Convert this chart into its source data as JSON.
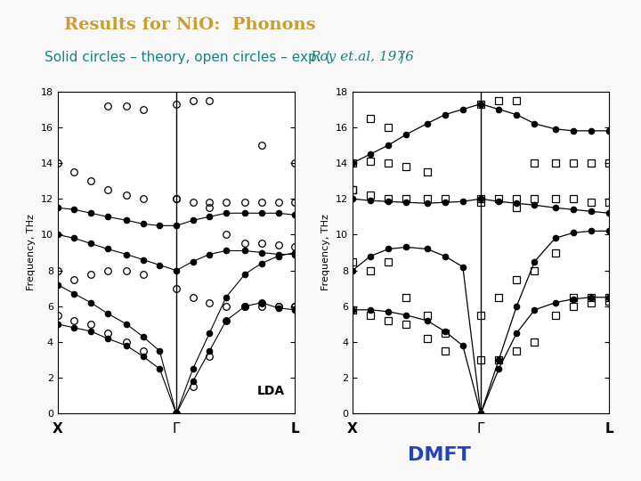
{
  "title": "Results for NiO:  Phonons",
  "title_color": "#C8A030",
  "subtitle_main": "Solid circles – theory, open circles – exp. (",
  "subtitle_italic": "Roy et.al, 1976",
  "subtitle_end": ")",
  "subtitle_color": "#1A8080",
  "dmft_label": "DMFT",
  "dmft_color": "#2244BB",
  "bg_color": "#F8F8F8",
  "ylabel": "Frequency, THz",
  "ylim": [
    0,
    18
  ],
  "yticks": [
    0,
    2,
    4,
    6,
    8,
    10,
    12,
    14,
    16,
    18
  ],
  "lda_solid_branches": [
    {
      "x": [
        0.0,
        0.07,
        0.14,
        0.21,
        0.29,
        0.36,
        0.43,
        0.5,
        0.57,
        0.64,
        0.71,
        0.79,
        0.86,
        0.93,
        1.0
      ],
      "y": [
        11.5,
        11.4,
        11.2,
        11.0,
        10.8,
        10.6,
        10.5,
        10.5,
        10.8,
        11.0,
        11.2,
        11.2,
        11.2,
        11.2,
        11.1
      ]
    },
    {
      "x": [
        0.0,
        0.07,
        0.14,
        0.21,
        0.29,
        0.36,
        0.43,
        0.5,
        0.57,
        0.64,
        0.71,
        0.79,
        0.86,
        0.93,
        1.0
      ],
      "y": [
        10.0,
        9.8,
        9.5,
        9.2,
        8.9,
        8.6,
        8.3,
        8.0,
        8.5,
        8.9,
        9.1,
        9.1,
        9.0,
        8.9,
        8.9
      ]
    },
    {
      "x": [
        0.0,
        0.07,
        0.14,
        0.21,
        0.29,
        0.36,
        0.43,
        0.5,
        0.57,
        0.64,
        0.71,
        0.79,
        0.86,
        0.93,
        1.0
      ],
      "y": [
        7.2,
        6.7,
        6.2,
        5.6,
        5.0,
        4.3,
        3.5,
        0.0,
        2.5,
        4.5,
        6.5,
        7.8,
        8.4,
        8.8,
        9.0
      ]
    },
    {
      "x": [
        0.0,
        0.07,
        0.14,
        0.21,
        0.29,
        0.36,
        0.43,
        0.5,
        0.57,
        0.64,
        0.71,
        0.79,
        0.86,
        0.93,
        1.0
      ],
      "y": [
        5.0,
        4.8,
        4.6,
        4.2,
        3.8,
        3.2,
        2.5,
        0.0,
        1.8,
        3.5,
        5.2,
        6.0,
        6.2,
        5.9,
        5.8
      ]
    }
  ],
  "lda_open_circles": [
    {
      "x": [
        0.0,
        0.07,
        0.14,
        0.21,
        0.29,
        0.36,
        0.5,
        0.64,
        0.71,
        0.79,
        0.86,
        0.93,
        1.0
      ],
      "y": [
        14.0,
        13.5,
        13.0,
        12.5,
        12.2,
        12.0,
        12.0,
        11.5,
        10.0,
        9.5,
        9.5,
        9.4,
        9.3
      ]
    },
    {
      "x": [
        0.21,
        0.29,
        0.36,
        0.5,
        0.57,
        0.64
      ],
      "y": [
        17.2,
        17.2,
        17.0,
        17.3,
        17.5,
        17.5
      ]
    },
    {
      "x": [
        0.0,
        0.07,
        0.14,
        0.21,
        0.29,
        0.36,
        0.5,
        0.57,
        0.64,
        0.71,
        0.79,
        0.86,
        0.93,
        1.0
      ],
      "y": [
        8.0,
        7.5,
        7.8,
        8.0,
        8.0,
        7.8,
        7.0,
        6.5,
        6.2,
        6.0,
        6.0,
        6.0,
        6.0,
        6.0
      ]
    },
    {
      "x": [
        0.0,
        0.07,
        0.14,
        0.21,
        0.29,
        0.36,
        0.5,
        0.57,
        0.64,
        0.71,
        0.79,
        0.86,
        0.93,
        1.0
      ],
      "y": [
        5.5,
        5.2,
        5.0,
        4.5,
        4.0,
        3.5,
        0.0,
        1.5,
        3.2,
        5.2,
        6.0,
        6.2,
        6.0,
        6.0
      ]
    },
    {
      "x": [
        0.5,
        0.57,
        0.64,
        0.71,
        0.79,
        0.86,
        0.93,
        1.0
      ],
      "y": [
        12.0,
        11.8,
        11.8,
        11.8,
        11.8,
        11.8,
        11.8,
        11.8
      ]
    },
    {
      "x": [
        0.86,
        1.0
      ],
      "y": [
        15.0,
        14.0
      ]
    }
  ],
  "dmft_solid_branches": [
    {
      "x": [
        0.0,
        0.07,
        0.14,
        0.21,
        0.29,
        0.36,
        0.43,
        0.5,
        0.57,
        0.64,
        0.71,
        0.79,
        0.86,
        0.93,
        1.0
      ],
      "y": [
        14.0,
        14.5,
        15.0,
        15.6,
        16.2,
        16.7,
        17.0,
        17.3,
        17.0,
        16.7,
        16.2,
        15.9,
        15.8,
        15.8,
        15.8
      ]
    },
    {
      "x": [
        0.0,
        0.07,
        0.14,
        0.21,
        0.29,
        0.36,
        0.43,
        0.5,
        0.57,
        0.64,
        0.71,
        0.79,
        0.86,
        0.93,
        1.0
      ],
      "y": [
        12.0,
        11.9,
        11.85,
        11.8,
        11.75,
        11.8,
        11.85,
        12.0,
        11.85,
        11.75,
        11.65,
        11.5,
        11.4,
        11.3,
        11.2
      ]
    },
    {
      "x": [
        0.0,
        0.07,
        0.14,
        0.21,
        0.29,
        0.36,
        0.43,
        0.5,
        0.57,
        0.64,
        0.71,
        0.79,
        0.86,
        0.93,
        1.0
      ],
      "y": [
        8.0,
        8.8,
        9.2,
        9.3,
        9.2,
        8.8,
        8.2,
        0.0,
        3.0,
        6.0,
        8.5,
        9.8,
        10.1,
        10.2,
        10.2
      ]
    },
    {
      "x": [
        0.0,
        0.07,
        0.14,
        0.21,
        0.29,
        0.36,
        0.43,
        0.5,
        0.57,
        0.64,
        0.71,
        0.79,
        0.86,
        0.93,
        1.0
      ],
      "y": [
        5.8,
        5.8,
        5.7,
        5.5,
        5.2,
        4.6,
        3.8,
        0.0,
        2.5,
        4.5,
        5.8,
        6.2,
        6.4,
        6.5,
        6.5
      ]
    }
  ],
  "dmft_open_squares": [
    {
      "x": [
        0.0,
        0.07,
        0.14,
        0.21,
        0.29,
        0.5,
        0.64,
        0.71,
        0.79,
        0.86,
        0.93,
        1.0
      ],
      "y": [
        14.0,
        14.1,
        14.0,
        13.8,
        13.5,
        11.8,
        11.5,
        14.0,
        14.0,
        14.0,
        14.0,
        14.0
      ]
    },
    {
      "x": [
        0.0,
        0.07,
        0.14,
        0.21,
        0.29,
        0.36,
        0.5,
        0.57,
        0.64,
        0.71,
        0.79,
        0.86,
        0.93,
        1.0
      ],
      "y": [
        12.5,
        12.2,
        12.0,
        12.0,
        12.0,
        12.0,
        12.0,
        12.0,
        12.0,
        12.0,
        12.0,
        12.0,
        11.8,
        11.8
      ]
    },
    {
      "x": [
        0.0,
        0.07,
        0.14,
        0.21,
        0.29,
        0.36,
        0.5,
        0.57,
        0.64,
        0.71,
        0.79,
        0.86,
        0.93,
        1.0
      ],
      "y": [
        8.5,
        8.0,
        8.5,
        6.5,
        5.5,
        4.5,
        5.5,
        6.5,
        7.5,
        8.0,
        9.0,
        6.5,
        6.5,
        6.5
      ]
    },
    {
      "x": [
        0.0,
        0.07,
        0.14,
        0.21,
        0.29,
        0.36,
        0.5,
        0.57,
        0.64,
        0.71,
        0.79,
        0.86,
        0.93,
        1.0
      ],
      "y": [
        5.8,
        5.5,
        5.2,
        5.0,
        4.2,
        3.5,
        3.0,
        3.0,
        3.5,
        4.0,
        5.5,
        6.0,
        6.2,
        6.3
      ]
    },
    {
      "x": [
        0.5,
        0.57,
        0.64
      ],
      "y": [
        17.3,
        17.5,
        17.5
      ]
    },
    {
      "x": [
        0.07,
        0.14
      ],
      "y": [
        16.5,
        16.0
      ]
    },
    {
      "x": [
        0.0
      ],
      "y": [
        12.5
      ]
    }
  ]
}
